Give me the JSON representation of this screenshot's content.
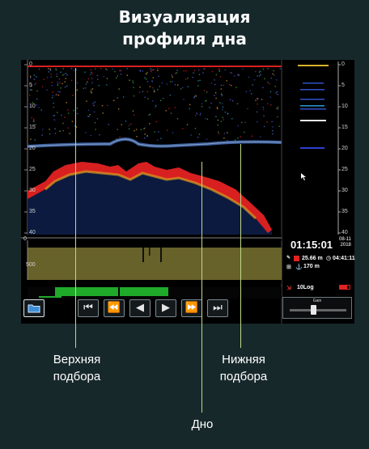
{
  "title": "Визуализация профиля дна",
  "sonar": {
    "depth_ticks_main": [
      "0",
      "5",
      "10",
      "15",
      "20",
      "25",
      "30",
      "35",
      "40"
    ],
    "depth_ticks_side": [
      "0",
      "5",
      "10",
      "15",
      "20",
      "25",
      "30",
      "35",
      "40"
    ],
    "lower_scale_ticks": [
      "0",
      "500"
    ]
  },
  "status": {
    "time": "01:15:01",
    "date_line1": "08-11",
    "date_line2": "2018",
    "depth": "25.66 m",
    "duration": "04:41:11",
    "distance": "170 m",
    "log_label": "10Log"
  },
  "toolbar": {
    "folder_icon": "folder-icon",
    "first_icon": "skip-start-icon",
    "rewind_icon": "rewind-icon",
    "prev_icon": "play-back-icon",
    "play_icon": "play-icon",
    "forward_icon": "fast-forward-icon",
    "last_icon": "skip-end-icon"
  },
  "gain": {
    "label": "Gain",
    "level": 0.42
  },
  "annotations": {
    "upper": "Верхняя подбора",
    "lower": "Нижняя подбора",
    "bottom": "Дно"
  },
  "colors": {
    "background": "#17282b",
    "callout": "#c2d88a",
    "seabed": "#d82020",
    "panel_olive": "#67612a",
    "bar_green": "#1faa2a"
  }
}
